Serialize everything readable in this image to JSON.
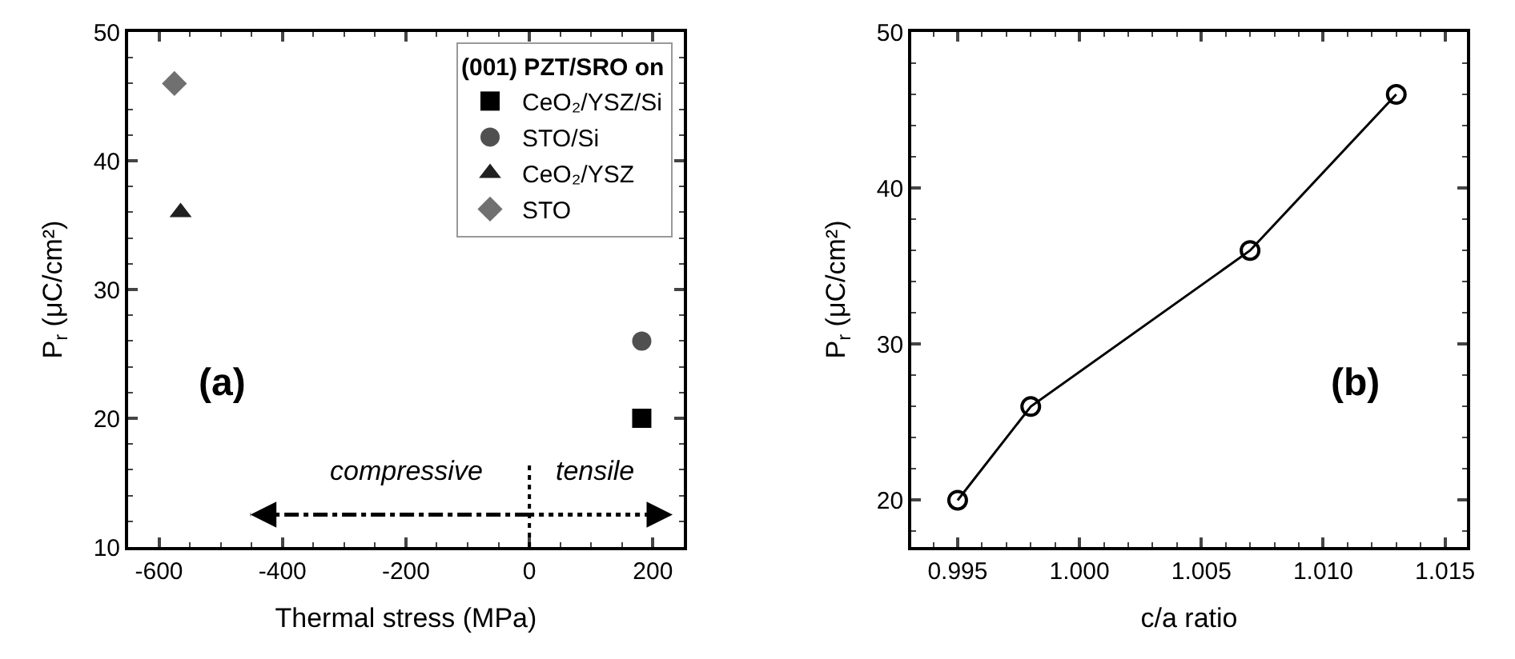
{
  "chart_data": [
    {
      "type": "scatter",
      "xlabel": "Thermal stress (MPa)",
      "ylabel": "P$_{r}$ (μC/cm²)",
      "legend_title": "(001) PZT/SRO on",
      "legend": "top right",
      "xlim": [
        -650,
        250
      ],
      "xticks": [
        -600,
        -400,
        -200,
        0,
        200
      ],
      "ylim": [
        10,
        50
      ],
      "yticks": [
        10,
        20,
        30,
        40,
        50
      ],
      "series": [
        {
          "name": "CeO₂/YSZ/Si",
          "color": "#000000",
          "marker": "square",
          "x": [
            182
          ],
          "values": [
            20
          ]
        },
        {
          "name": "STO/Si",
          "color": "#505050",
          "marker": "circle",
          "x": [
            182
          ],
          "values": [
            26
          ]
        },
        {
          "name": "CeO₂/YSZ",
          "color": "#202020",
          "marker": "triangle",
          "x": [
            -565
          ],
          "values": [
            36
          ]
        },
        {
          "name": "STO",
          "color": "#707070",
          "marker": "diamond",
          "x": [
            -575
          ],
          "values": [
            46
          ]
        }
      ],
      "ref_lines": [
        {
          "axis": "x",
          "value": 0,
          "label": null,
          "line_style": "dotted",
          "color": "#000000"
        }
      ],
      "annotations": [
        "compressive",
        "tensile",
        "(a)"
      ]
    },
    {
      "type": "line",
      "xlabel": "c/a ratio",
      "ylabel": "P$_{r}$ (μC/cm²)",
      "marker": "circle",
      "line_style": "solid",
      "xlim": [
        0.9931,
        1.0159
      ],
      "xticks": [
        {
          "value": 0.995,
          "label": "0.995"
        },
        {
          "value": 1.0,
          "label": "1.000"
        },
        {
          "value": 1.005,
          "label": "1.005"
        },
        {
          "value": 1.01,
          "label": "1.010"
        },
        {
          "value": 1.015,
          "label": "1.015"
        }
      ],
      "ylim": [
        17,
        50
      ],
      "yticks": [
        20,
        30,
        40,
        50
      ],
      "series": [
        {
          "color": "#000000",
          "x": [
            0.995,
            0.998,
            1.007,
            1.013
          ],
          "values": [
            20,
            26,
            36,
            46
          ]
        }
      ],
      "annotations": [
        "(b)"
      ]
    }
  ]
}
